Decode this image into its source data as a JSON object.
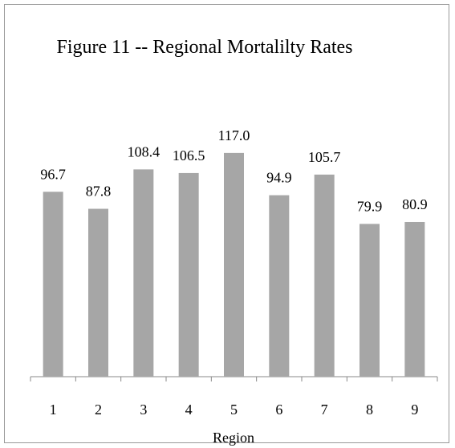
{
  "chart_data": {
    "type": "bar",
    "title": "Figure 11 --  Regional Mortalilty Rates",
    "x_label": "Region",
    "categories": [
      "1",
      "2",
      "3",
      "4",
      "5",
      "6",
      "7",
      "8",
      "9"
    ],
    "values": [
      96.7,
      87.8,
      108.4,
      106.5,
      117.0,
      94.9,
      105.7,
      79.9,
      80.9
    ],
    "value_labels": [
      "96.7",
      "87.8",
      "108.4",
      "106.5",
      "117.0",
      "94.9",
      "105.7",
      "79.9",
      "80.9"
    ],
    "color": "#a6a6a6",
    "ylim": [
      0,
      140
    ]
  }
}
